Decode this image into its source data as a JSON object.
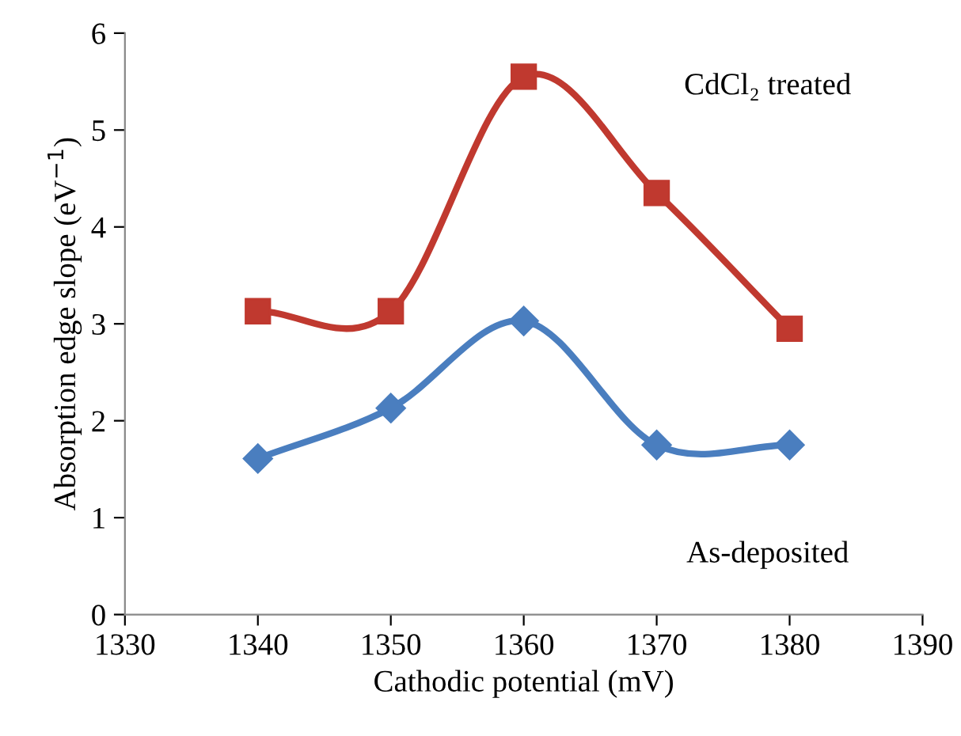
{
  "chart_data": {
    "type": "line",
    "xlabel": "Cathodic potential (mV)",
    "ylabel": "Absorption edge slope (eV$^{−1}$)",
    "x": [
      1340,
      1350,
      1360,
      1370,
      1380
    ],
    "series": [
      {
        "name": "CdCl₂ treated",
        "color": "#c0392f",
        "marker": "square",
        "values": [
          3.13,
          3.13,
          5.55,
          4.35,
          2.95
        ]
      },
      {
        "name": "As-deposited",
        "color": "#4a7ebf",
        "marker": "diamond",
        "values": [
          1.61,
          2.13,
          3.03,
          1.75,
          1.75
        ]
      }
    ],
    "xlim": [
      1330,
      1390
    ],
    "xticks": [
      1330,
      1340,
      1350,
      1360,
      1370,
      1380,
      1390
    ],
    "ylim": [
      0,
      6
    ],
    "yticks": [
      0,
      1,
      2,
      3,
      4,
      5,
      6
    ],
    "grid": false,
    "legend": false
  }
}
